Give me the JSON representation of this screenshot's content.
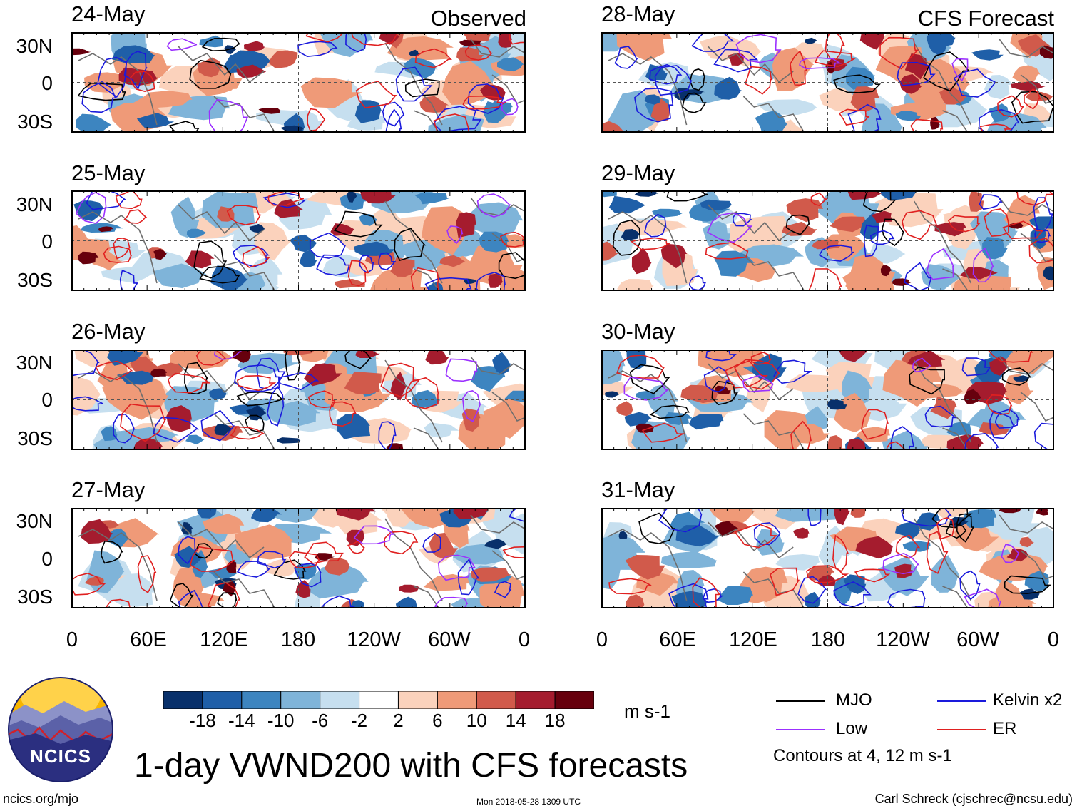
{
  "columns": {
    "left_title": "Observed",
    "right_title": "CFS Forecast"
  },
  "panels": {
    "left": [
      "24-May",
      "25-May",
      "26-May",
      "27-May"
    ],
    "right": [
      "28-May",
      "29-May",
      "30-May",
      "31-May"
    ]
  },
  "lat_labels": [
    "30N",
    "0",
    "30S"
  ],
  "lon_labels": [
    "0",
    "60E",
    "120E",
    "180",
    "120W",
    "60W",
    "0"
  ],
  "colorbar": {
    "labels": [
      "-18",
      "-14",
      "-10",
      "-6",
      "-2",
      "2",
      "6",
      "10",
      "14",
      "18"
    ],
    "colors": [
      "#08306b",
      "#1f5fa8",
      "#3d85c0",
      "#7fb4d9",
      "#c6dfef",
      "#ffffff",
      "#fbd2bc",
      "#ef9a78",
      "#d15a4b",
      "#a51c2e",
      "#67000d"
    ],
    "units": "m s-1"
  },
  "legend": {
    "items": [
      {
        "label": "MJO",
        "color": "#000000"
      },
      {
        "label": "Kelvin x2",
        "color": "#1a1adc"
      },
      {
        "label": "Low",
        "color": "#9b30ff"
      },
      {
        "label": "ER",
        "color": "#e02020"
      }
    ],
    "contours_note": "Contours at 4, 12 m s-1"
  },
  "logo_text": "NCICS",
  "title": "1-day VWND200 with CFS forecasts",
  "footer": {
    "url": "ncics.org/mjo",
    "timestamp": "Mon 2018-05-28 1309 UTC",
    "author": "Carl Schreck (cjschrec@ncsu.edu)"
  }
}
